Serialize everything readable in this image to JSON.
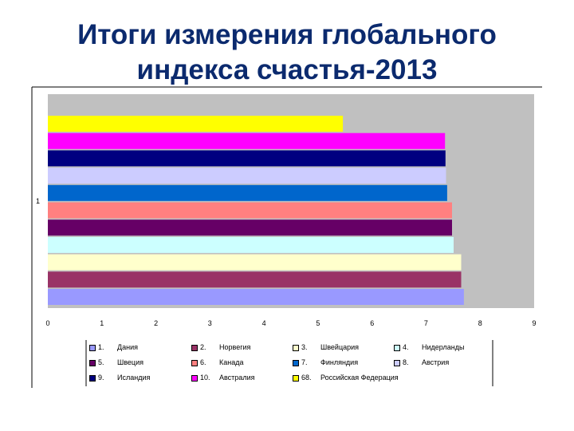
{
  "title_line1": "Итоги измерения глобального",
  "title_line2": "индекса счастья-2013",
  "chart_data": {
    "type": "bar",
    "orientation": "horizontal",
    "category_label": "1",
    "xlim": [
      0,
      9
    ],
    "x_ticks": [
      "0",
      "1",
      "2",
      "3",
      "4",
      "5",
      "6",
      "7",
      "8",
      "9"
    ],
    "grid": false,
    "legend_position": "bottom",
    "series": [
      {
        "rank": "1.",
        "name": "Дания",
        "value": 7.7,
        "color": "#9999ff"
      },
      {
        "rank": "2.",
        "name": "Норвегия",
        "value": 7.65,
        "color": "#993366"
      },
      {
        "rank": "3.",
        "name": "Швейцария",
        "value": 7.65,
        "color": "#ffffcc"
      },
      {
        "rank": "4.",
        "name": "Нидерланды",
        "value": 7.51,
        "color": "#ccffff"
      },
      {
        "rank": "5.",
        "name": "Швеция",
        "value": 7.48,
        "color": "#660066"
      },
      {
        "rank": "6.",
        "name": "Канада",
        "value": 7.48,
        "color": "#ff8080"
      },
      {
        "rank": "7.",
        "name": "Финляндия",
        "value": 7.39,
        "color": "#0066cc"
      },
      {
        "rank": "8.",
        "name": "Австрия",
        "value": 7.37,
        "color": "#ccccff"
      },
      {
        "rank": "9.",
        "name": "Исландия",
        "value": 7.36,
        "color": "#000080"
      },
      {
        "rank": "10.",
        "name": "Австралия",
        "value": 7.35,
        "color": "#ff00ff"
      },
      {
        "rank": "68.",
        "name": "Российская Федерация",
        "value": 5.46,
        "color": "#ffff00"
      }
    ]
  }
}
